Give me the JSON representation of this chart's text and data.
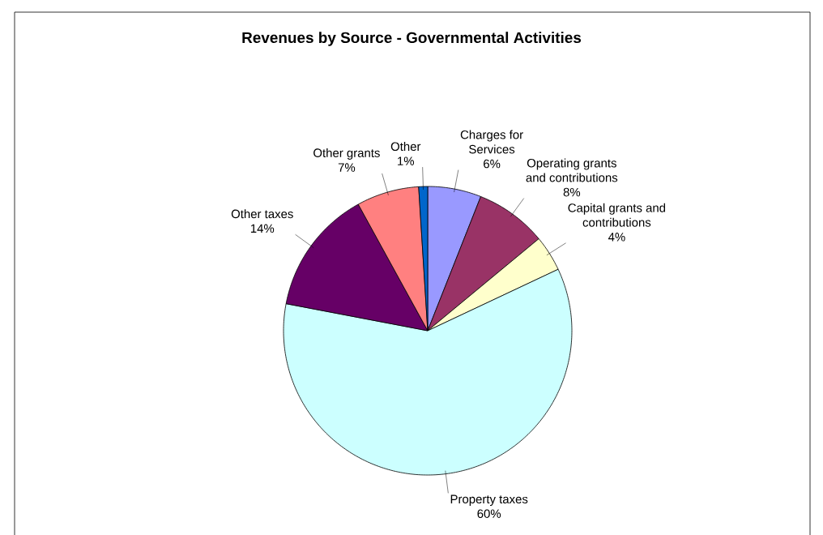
{
  "chart_data": {
    "type": "pie",
    "title": "Revenues by Source - Governmental Activities",
    "categories": [
      "Charges for Services",
      "Operating grants and contributions",
      "Capital grants and contributions",
      "Property taxes",
      "Other taxes",
      "Other grants",
      "Other"
    ],
    "values": [
      6,
      8,
      4,
      60,
      14,
      7,
      1
    ],
    "colors": [
      "#9999ff",
      "#993366",
      "#ffffcc",
      "#ccffff",
      "#660066",
      "#ff8080",
      "#0066cc"
    ],
    "value_labels": [
      "6%",
      "8%",
      "4%",
      "60%",
      "14%",
      "7%",
      "1%"
    ]
  }
}
